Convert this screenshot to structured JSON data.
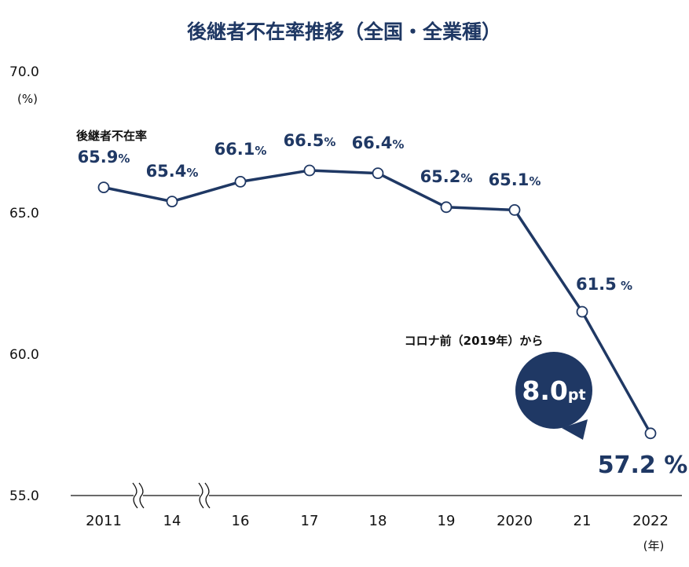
{
  "chart_data": {
    "type": "line",
    "title": "後継者不在率推移（全国・全業種）",
    "ylabel": "(%)",
    "xlabel": "",
    "x_unit_label": "(年)",
    "ylim": [
      55.0,
      70.0
    ],
    "y_ticks": [
      "70.0",
      "65.0",
      "60.0",
      "55.0"
    ],
    "categories": [
      "2011",
      "14",
      "16",
      "17",
      "18",
      "19",
      "2020",
      "21",
      "2022"
    ],
    "series": [
      {
        "name": "後継者不在率",
        "values": [
          65.9,
          65.4,
          66.1,
          66.5,
          66.4,
          65.2,
          65.1,
          61.5,
          57.2
        ],
        "labels": [
          "65.9",
          "65.4",
          "66.1",
          "66.5",
          "66.4",
          "65.2",
          "65.1",
          "61.5",
          "57.2"
        ],
        "unit": "%"
      }
    ],
    "annotations": {
      "note": "コロナ前（2019年）から",
      "badge_value": "8.0",
      "badge_unit": "pt"
    },
    "axis_breaks_after": [
      "2011",
      "14"
    ],
    "color": "#1f3864",
    "grid": false
  }
}
